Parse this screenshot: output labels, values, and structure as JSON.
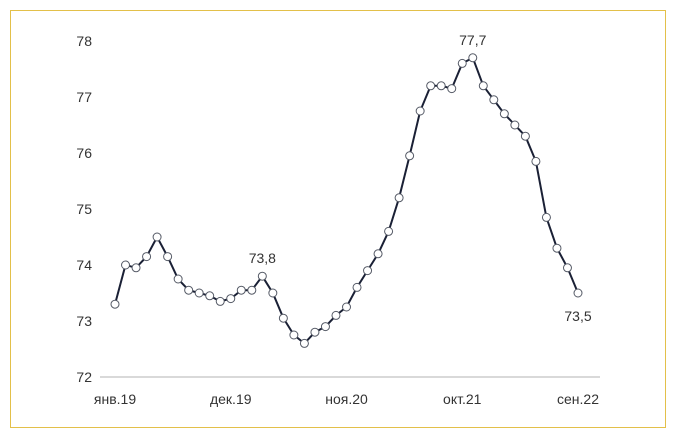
{
  "chart_data": {
    "type": "line",
    "title": "",
    "xlabel": "",
    "ylabel": "",
    "ylim": [
      72,
      78
    ],
    "yticks": [
      "72",
      "73",
      "74",
      "75",
      "76",
      "77",
      "78"
    ],
    "xtick_labels": [
      "янв.19",
      "дек.19",
      "ноя.20",
      "окт.21",
      "сен.22"
    ],
    "xtick_index": [
      0,
      11,
      22,
      33,
      44
    ],
    "grid": false,
    "line_color": "#1a2035",
    "marker_color": "#ffffff",
    "series": [
      {
        "values": [
          73.3,
          74.0,
          73.95,
          74.15,
          74.5,
          74.15,
          73.75,
          73.55,
          73.5,
          73.45,
          73.35,
          73.4,
          73.55,
          73.55,
          73.8,
          73.5,
          73.05,
          72.75,
          72.6,
          72.8,
          72.9,
          73.1,
          73.25,
          73.6,
          73.9,
          74.2,
          74.6,
          75.2,
          75.95,
          76.75,
          77.2,
          77.2,
          77.15,
          77.6,
          77.7,
          77.2,
          76.95,
          76.7,
          76.5,
          76.3,
          75.85,
          74.85,
          74.3,
          73.95,
          73.5
        ]
      }
    ],
    "annotations": [
      {
        "index": 14,
        "text": "73,8"
      },
      {
        "index": 34,
        "text": "77,7"
      },
      {
        "index": 44,
        "text": "73,5"
      }
    ]
  }
}
